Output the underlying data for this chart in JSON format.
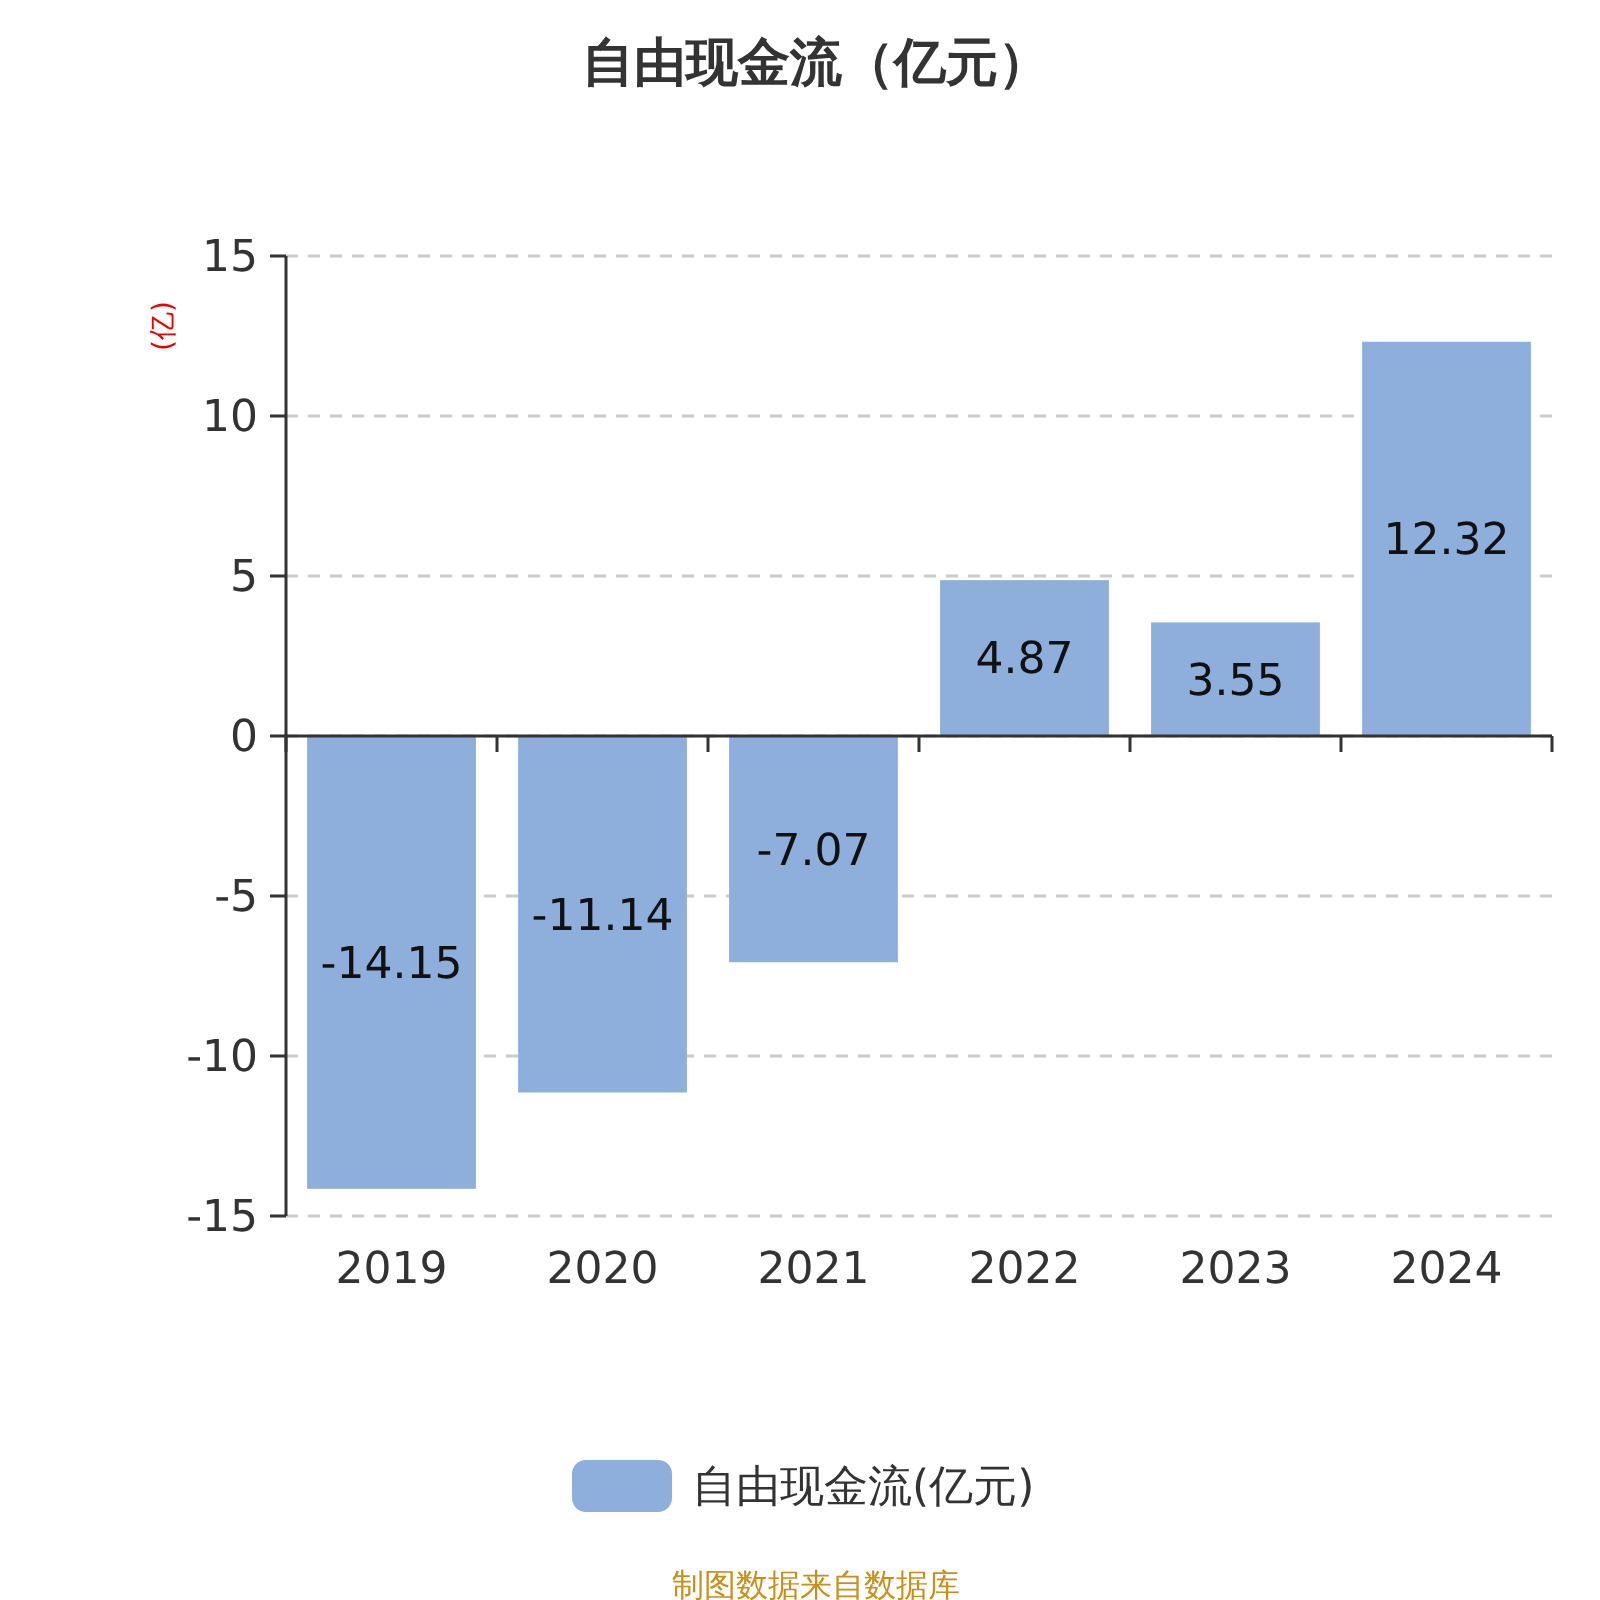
{
  "chart_data": {
    "type": "bar",
    "title": "自由现金流（亿元）",
    "ylabel": "(亿)",
    "categories": [
      "2019",
      "2020",
      "2021",
      "2022",
      "2023",
      "2024"
    ],
    "series": [
      {
        "name": "自由现金流(亿元)",
        "color": "#8eaedb",
        "values": [
          -14.15,
          -11.14,
          -7.07,
          4.87,
          3.55,
          12.32
        ]
      }
    ],
    "ylim": [
      -15,
      15
    ],
    "yticks": [
      -15,
      -10,
      -5,
      0,
      5,
      10,
      15
    ],
    "grid": "y",
    "legend": "bottom",
    "data_labels": true,
    "annotations": [
      "制图数据来自数据库"
    ]
  }
}
